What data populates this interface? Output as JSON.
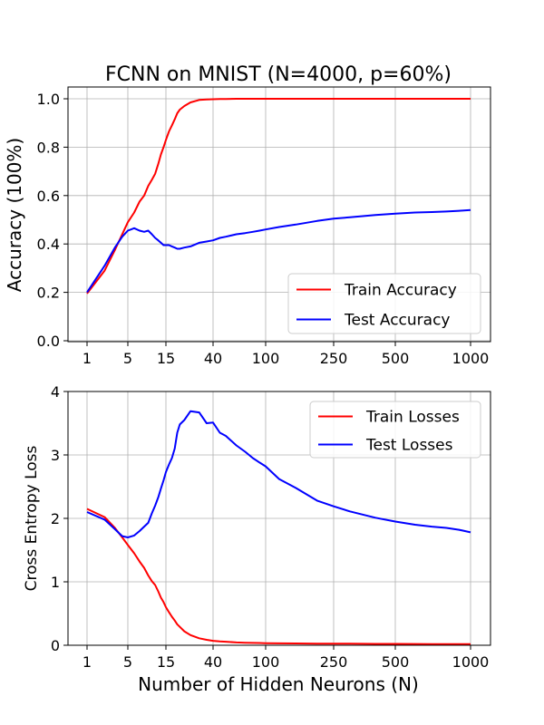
{
  "figure": {
    "title": "FCNN on MNIST (N=4000, p=60%)"
  },
  "chart_data": [
    {
      "type": "line",
      "title": "FCNN on MNIST (N=4000, p=60%)",
      "xlabel": "",
      "ylabel": "Accuracy (100%)",
      "x_ticks": [
        1,
        5,
        15,
        40,
        100,
        250,
        500,
        1000
      ],
      "x_tick_labels": [
        "1",
        "5",
        "15",
        "40",
        "100",
        "250",
        "500",
        "1000"
      ],
      "y_ticks": [
        0.0,
        0.2,
        0.4,
        0.6,
        0.8,
        1.0
      ],
      "y_tick_labels": [
        "0.0",
        "0.2",
        "0.4",
        "0.6",
        "0.8",
        "1.0"
      ],
      "ylim": [
        0.0,
        1.05
      ],
      "grid": true,
      "legend_position": "lower-right",
      "series": [
        {
          "name": "Train Accuracy",
          "color": "#ff0000",
          "x": [
            1,
            2,
            3,
            4,
            5,
            6,
            7,
            8,
            9,
            10,
            11,
            12,
            13,
            14,
            15,
            16,
            17,
            18,
            19,
            20,
            22,
            25,
            30,
            35,
            40,
            45,
            50,
            60,
            70,
            80,
            90,
            100,
            120,
            150,
            200,
            250,
            300,
            400,
            500,
            600,
            700,
            800,
            900,
            1000
          ],
          "y": [
            0.195,
            0.29,
            0.375,
            0.44,
            0.49,
            0.53,
            0.575,
            0.6,
            0.64,
            0.665,
            0.69,
            0.73,
            0.77,
            0.8,
            0.83,
            0.865,
            0.89,
            0.915,
            0.94,
            0.955,
            0.97,
            0.985,
            0.995,
            0.997,
            0.998,
            0.999,
            0.999,
            1.0,
            1.0,
            1.0,
            1.0,
            1.0,
            1.0,
            1.0,
            1.0,
            1.0,
            1.0,
            1.0,
            1.0,
            1.0,
            1.0,
            1.0,
            1.0,
            1.0
          ]
        },
        {
          "name": "Test Accuracy",
          "color": "#0000ff",
          "x": [
            1,
            2,
            3,
            4,
            5,
            6,
            7,
            8,
            9,
            10,
            11,
            12,
            13,
            14,
            15,
            16,
            17,
            18,
            19,
            20,
            22,
            25,
            30,
            35,
            40,
            45,
            50,
            60,
            70,
            80,
            90,
            100,
            120,
            150,
            200,
            250,
            300,
            400,
            500,
            600,
            700,
            800,
            900,
            1000
          ],
          "y": [
            0.2,
            0.31,
            0.385,
            0.43,
            0.455,
            0.465,
            0.455,
            0.45,
            0.455,
            0.44,
            0.425,
            0.415,
            0.405,
            0.395,
            0.395,
            0.395,
            0.39,
            0.385,
            0.38,
            0.38,
            0.385,
            0.39,
            0.405,
            0.41,
            0.415,
            0.425,
            0.43,
            0.44,
            0.445,
            0.45,
            0.455,
            0.46,
            0.47,
            0.48,
            0.495,
            0.505,
            0.51,
            0.52,
            0.525,
            0.53,
            0.532,
            0.534,
            0.537,
            0.54
          ]
        }
      ]
    },
    {
      "type": "line",
      "title": "",
      "xlabel": "Number of Hidden Neurons (N)",
      "ylabel": "Cross Entropy Loss",
      "x_ticks": [
        1,
        5,
        15,
        40,
        100,
        250,
        500,
        1000
      ],
      "x_tick_labels": [
        "1",
        "5",
        "15",
        "40",
        "100",
        "250",
        "500",
        "1000"
      ],
      "y_ticks": [
        0,
        1,
        2,
        3,
        4
      ],
      "y_tick_labels": [
        "0",
        "1",
        "2",
        "3",
        "4"
      ],
      "ylim": [
        0,
        4
      ],
      "grid": true,
      "legend_position": "upper-right",
      "series": [
        {
          "name": "Train Losses",
          "color": "#ff0000",
          "x": [
            1,
            2,
            3,
            4,
            5,
            6,
            7,
            8,
            9,
            10,
            11,
            12,
            13,
            14,
            15,
            16,
            17,
            18,
            19,
            20,
            22,
            25,
            30,
            35,
            40,
            45,
            50,
            60,
            70,
            80,
            90,
            100,
            120,
            150,
            200,
            250,
            300,
            400,
            500,
            600,
            700,
            800,
            900,
            1000
          ],
          "y": [
            2.15,
            2.02,
            1.85,
            1.7,
            1.58,
            1.45,
            1.32,
            1.22,
            1.1,
            1.01,
            0.95,
            0.85,
            0.75,
            0.68,
            0.6,
            0.52,
            0.45,
            0.39,
            0.33,
            0.29,
            0.22,
            0.16,
            0.11,
            0.085,
            0.07,
            0.06,
            0.055,
            0.045,
            0.04,
            0.037,
            0.035,
            0.033,
            0.03,
            0.028,
            0.026,
            0.025,
            0.024,
            0.022,
            0.021,
            0.02,
            0.019,
            0.018,
            0.018,
            0.017
          ]
        },
        {
          "name": "Test Losses",
          "color": "#0000ff",
          "x": [
            1,
            2,
            3,
            4,
            5,
            6,
            7,
            8,
            9,
            10,
            11,
            12,
            13,
            14,
            15,
            16,
            17,
            18,
            19,
            20,
            22,
            25,
            30,
            35,
            40,
            45,
            50,
            60,
            70,
            80,
            90,
            100,
            120,
            150,
            200,
            250,
            300,
            400,
            500,
            600,
            700,
            800,
            900,
            1000
          ],
          "y": [
            2.1,
            1.98,
            1.83,
            1.72,
            1.7,
            1.73,
            1.8,
            1.87,
            1.93,
            2.08,
            2.2,
            2.33,
            2.47,
            2.6,
            2.73,
            2.85,
            2.95,
            3.1,
            3.35,
            3.48,
            3.55,
            3.69,
            3.67,
            3.5,
            3.51,
            3.35,
            3.3,
            3.15,
            3.05,
            2.95,
            2.88,
            2.82,
            2.62,
            2.48,
            2.28,
            2.19,
            2.11,
            2.01,
            1.95,
            1.9,
            1.87,
            1.85,
            1.82,
            1.78
          ]
        }
      ]
    }
  ]
}
